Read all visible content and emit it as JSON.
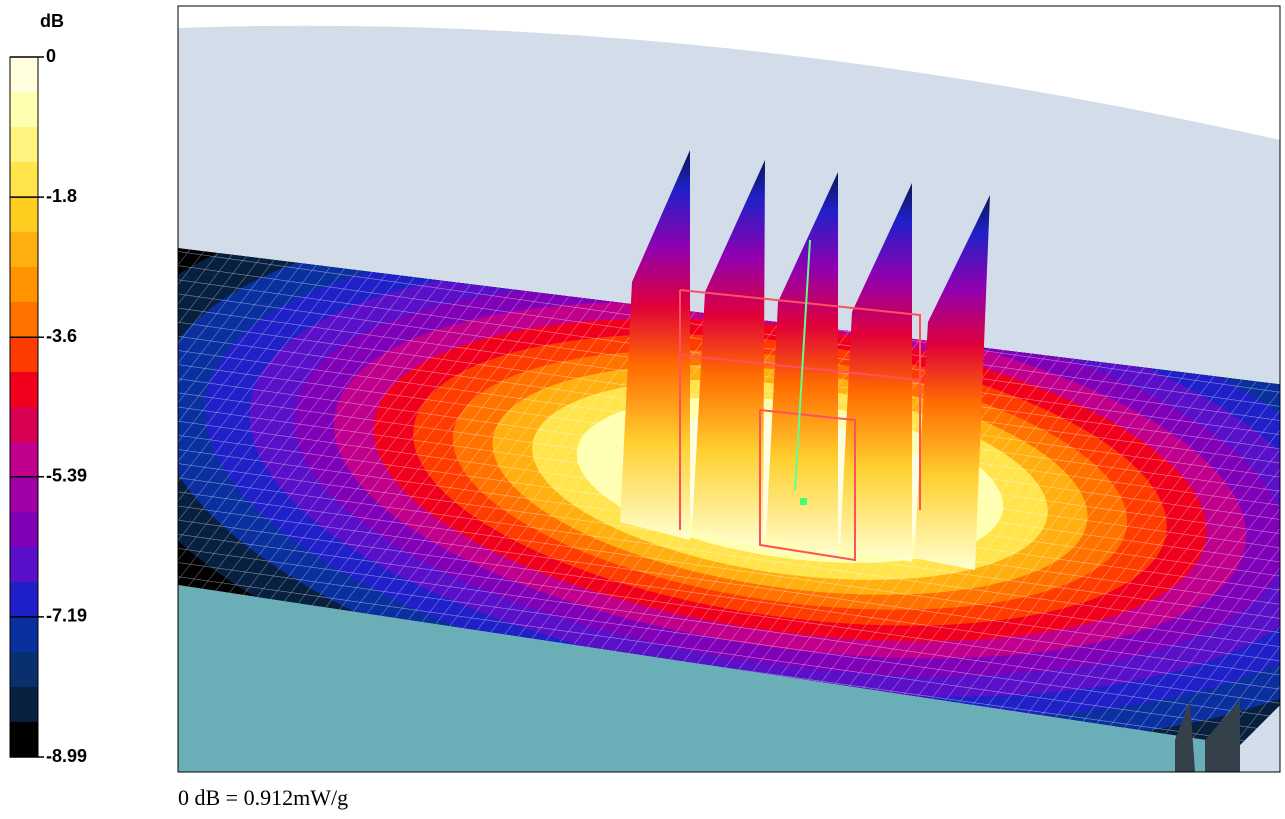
{
  "chart_data": {
    "type": "colormap",
    "colorbar_label": "dB",
    "clim": [
      -8.99,
      0
    ],
    "colorbar_ticks": [
      0,
      -1.8,
      -3.6,
      -5.39,
      -7.19,
      -8.99
    ],
    "colors": [
      "#ffffe0",
      "#ffffb0",
      "#fff480",
      "#ffe44c",
      "#ffcc20",
      "#ffb010",
      "#ff9400",
      "#ff7200",
      "#ff3c00",
      "#f0001c",
      "#d80050",
      "#c0008c",
      "#a000a8",
      "#8000b8",
      "#5a10c8",
      "#2020c8",
      "#0a30a0",
      "#08306e",
      "#082040",
      "#000000"
    ],
    "caption": "0 dB = 0.912mW/g"
  }
}
